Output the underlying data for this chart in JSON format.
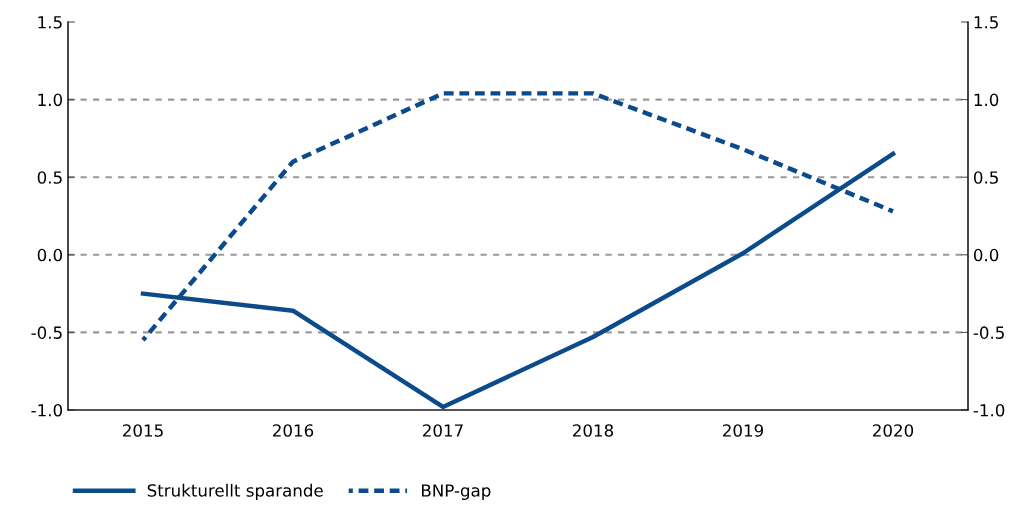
{
  "chart_data": {
    "type": "line",
    "categories": [
      "2015",
      "2016",
      "2017",
      "2018",
      "2019",
      "2020"
    ],
    "series": [
      {
        "name": "Strukturellt sparande",
        "color": "#0b4a8b",
        "line_style": "solid",
        "values": [
          -0.25,
          -0.36,
          -0.98,
          -0.53,
          0.01,
          0.65
        ]
      },
      {
        "name": "BNP-gap",
        "color": "#0b4a8b",
        "line_style": "dashed",
        "values": [
          -0.55,
          0.6,
          1.04,
          1.04,
          0.68,
          0.28
        ]
      }
    ],
    "ylim": [
      -1.0,
      1.5
    ],
    "yticks": [
      {
        "value": -1.0,
        "label": "-1.0"
      },
      {
        "value": -0.5,
        "label": "-0.5"
      },
      {
        "value": 0.0,
        "label": "0.0"
      },
      {
        "value": 0.5,
        "label": "0.5"
      },
      {
        "value": 1.0,
        "label": "1.0"
      },
      {
        "value": 1.5,
        "label": "1.5"
      }
    ],
    "y2lim": [
      -1.0,
      1.5
    ],
    "y2ticks": [
      {
        "value": -1.0,
        "label": "-1.0"
      },
      {
        "value": -0.5,
        "label": "-0.5"
      },
      {
        "value": 0.0,
        "label": "0.0"
      },
      {
        "value": 0.5,
        "label": "0.5"
      },
      {
        "value": 1.0,
        "label": "1.0"
      },
      {
        "value": 1.5,
        "label": "1.5"
      }
    ],
    "grid": "y",
    "legend": "bottom left",
    "marker": "none"
  }
}
